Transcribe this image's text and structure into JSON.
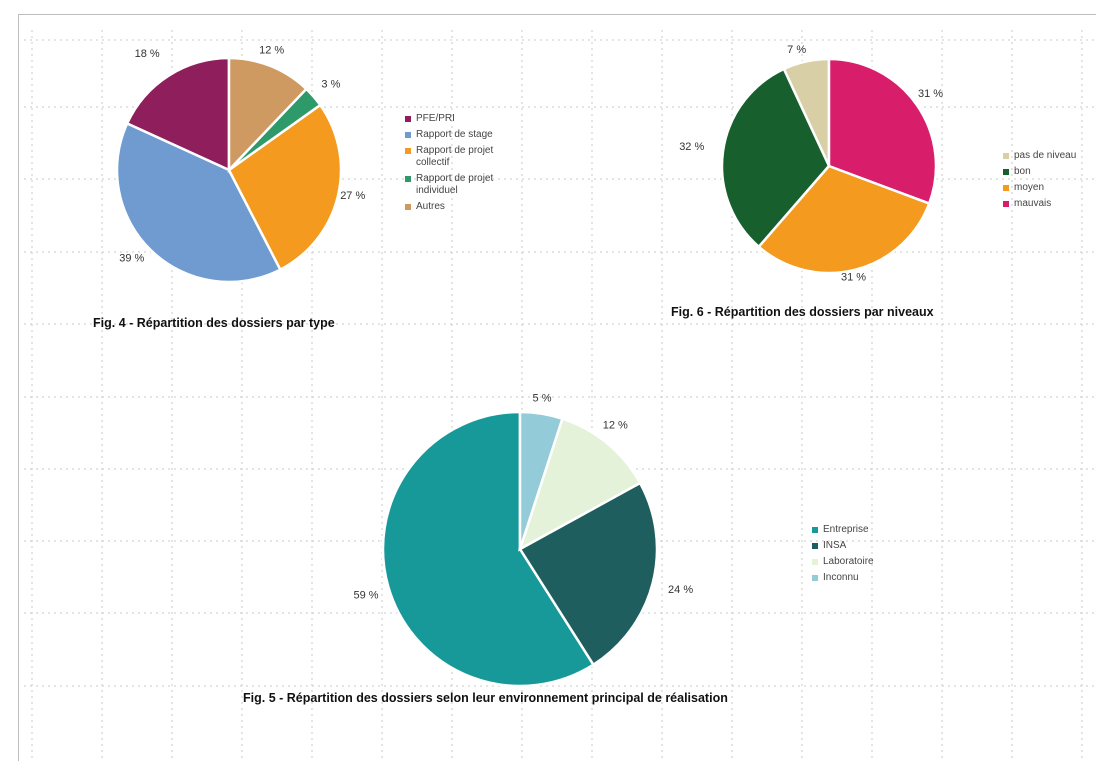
{
  "chart_data": [
    {
      "type": "pie",
      "id": "fig4",
      "title": "Fig. 4 - Répartition des dossiers par type",
      "series": [
        {
          "name": "PFE/PRI",
          "value": 18,
          "label": "18 %",
          "color": "#8e1f5c"
        },
        {
          "name": "Rapport de stage",
          "value": 39,
          "label": "39 %",
          "color": "#6f9bd1"
        },
        {
          "name": "Rapport de projet\ncollectif",
          "value": 27,
          "label": "27 %",
          "color": "#f39a1f"
        },
        {
          "name": "Rapport de projet\nindividuel",
          "value": 3,
          "label": "3 %",
          "color": "#2e9a6a"
        },
        {
          "name": "Autres",
          "value": 12,
          "label": "12 %",
          "color": "#cf9a62"
        }
      ],
      "legend": "right"
    },
    {
      "type": "pie",
      "id": "fig6",
      "title": "Fig. 6 - Répartition des dossiers par niveaux",
      "series": [
        {
          "name": "pas de niveau",
          "value": 7,
          "label": "7 %",
          "color": "#d9cfa6"
        },
        {
          "name": "bon",
          "value": 32,
          "label": "32 %",
          "color": "#17602e"
        },
        {
          "name": "moyen",
          "value": 31,
          "label": "31 %",
          "color": "#f39a1f"
        },
        {
          "name": "mauvais",
          "value": 31,
          "label": "31 %",
          "color": "#d81d6b"
        }
      ],
      "legend": "right"
    },
    {
      "type": "pie",
      "id": "fig5",
      "title": "Fig. 5 - Répartition des dossiers selon leur environnement principal de réalisation",
      "series": [
        {
          "name": "Entreprise",
          "value": 59,
          "label": "59 %",
          "color": "#17999a"
        },
        {
          "name": "INSA",
          "value": 24,
          "label": "24 %",
          "color": "#1f5e5f"
        },
        {
          "name": "Laboratoire",
          "value": 12,
          "label": "12 %",
          "color": "#e3f2d8"
        },
        {
          "name": "Inconnu",
          "value": 5,
          "label": "5 %",
          "color": "#94cbd9"
        }
      ],
      "legend": "right"
    }
  ]
}
